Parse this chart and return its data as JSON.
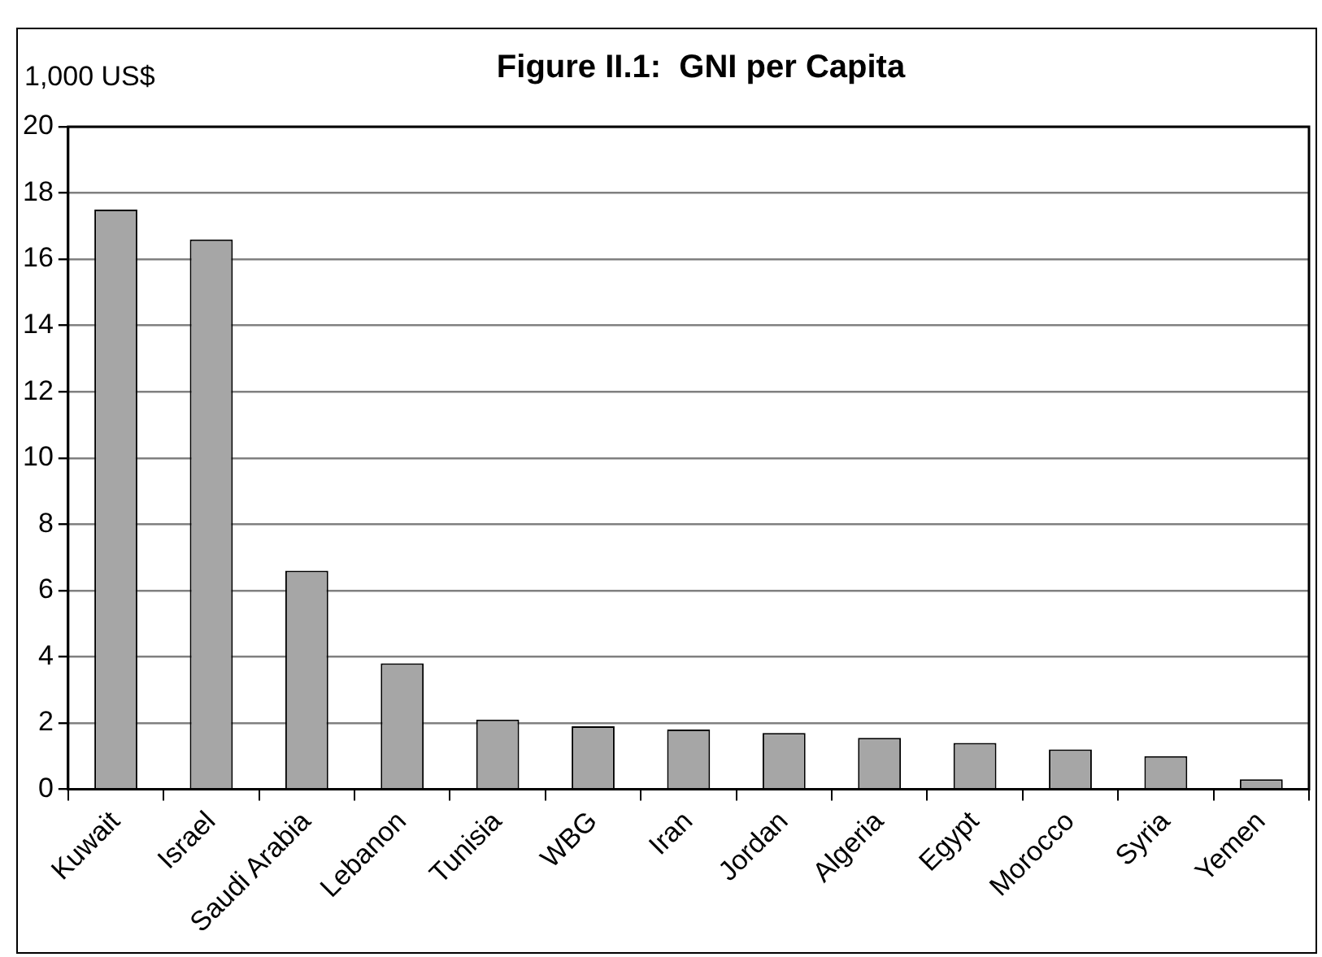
{
  "chart_data": {
    "type": "bar",
    "title": "Figure II.1:  GNI per Capita",
    "ylabel": "1,000 US$",
    "categories": [
      "Kuwait",
      "Israel",
      "Saudi Arabia",
      "Lebanon",
      "Tunisia",
      "WBG",
      "Iran",
      "Jordan",
      "Algeria",
      "Egypt",
      "Morocco",
      "Syria",
      "Yemen"
    ],
    "values": [
      17.5,
      16.6,
      6.6,
      3.8,
      2.1,
      1.9,
      1.8,
      1.7,
      1.55,
      1.4,
      1.2,
      1.0,
      0.3
    ],
    "color": "#a6a6a6",
    "ylim": [
      0,
      20
    ],
    "yticks": [
      0,
      2,
      4,
      6,
      8,
      10,
      12,
      14,
      16,
      18,
      20
    ],
    "grid": "y",
    "legend": false
  }
}
